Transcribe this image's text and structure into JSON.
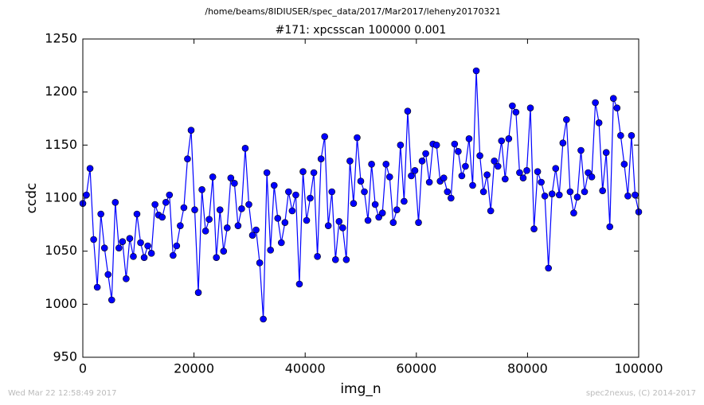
{
  "chart_data": {
    "type": "line",
    "title": "/home/beams/8IDIUSER/spec_data/2017/Mar2017/leheny20170321",
    "subtitle": "#171: xpcsscan 100000 0.001",
    "x_label": "img_n",
    "y_label": "ccdc",
    "footer_left": "Wed Mar 22 12:58:49 2017",
    "footer_right": "spec2nexus, (C) 2014-2017",
    "color": "#0000ff",
    "marker_edge": "#000000",
    "xlim": [
      0,
      100000
    ],
    "ylim": [
      950,
      1250
    ],
    "xticks": [
      0,
      20000,
      40000,
      60000,
      80000,
      100000
    ],
    "yticks": [
      950,
      1000,
      1050,
      1100,
      1150,
      1200,
      1250
    ],
    "x": [
      0,
      649,
      1299,
      1948,
      2597,
      3247,
      3896,
      4545,
      5195,
      5844,
      6494,
      7143,
      7792,
      8442,
      9091,
      9740,
      10390,
      11039,
      11688,
      12338,
      12987,
      13636,
      14286,
      14935,
      15584,
      16234,
      16883,
      17532,
      18182,
      18831,
      19481,
      20130,
      20779,
      21429,
      22078,
      22727,
      23377,
      24026,
      24675,
      25325,
      25974,
      26623,
      27273,
      27922,
      28571,
      29221,
      29870,
      30519,
      31169,
      31818,
      32468,
      33117,
      33766,
      34416,
      35065,
      35714,
      36364,
      37013,
      37662,
      38312,
      38961,
      39610,
      40260,
      40909,
      41558,
      42208,
      42857,
      43506,
      44156,
      44805,
      45455,
      46104,
      46753,
      47403,
      48052,
      48701,
      49351,
      50000,
      50649,
      51299,
      51948,
      52597,
      53247,
      53896,
      54545,
      55195,
      55844,
      56493,
      57143,
      57792,
      58442,
      59091,
      59740,
      60390,
      61039,
      61688,
      62338,
      62987,
      63636,
      64286,
      64935,
      65584,
      66234,
      66883,
      67532,
      68182,
      68831,
      69480,
      70130,
      70779,
      71429,
      72078,
      72727,
      73377,
      74026,
      74675,
      75325,
      75974,
      76623,
      77273,
      77922,
      78571,
      79221,
      79870,
      80519,
      81169,
      81818,
      82467,
      83117,
      83766,
      84416,
      85065,
      85714,
      86364,
      87013,
      87662,
      88312,
      88961,
      89610,
      90260,
      90909,
      91558,
      92208,
      92857,
      93506,
      94156,
      94805,
      95454,
      96104,
      96753,
      97403,
      98052,
      98701,
      99351,
      100000
    ],
    "values": [
      1095,
      1103,
      1128,
      1061,
      1016,
      1085,
      1053,
      1028,
      1004,
      1096,
      1053,
      1059,
      1024,
      1062,
      1045,
      1085,
      1058,
      1044,
      1055,
      1048,
      1094,
      1084,
      1082,
      1096,
      1103,
      1046,
      1055,
      1074,
      1091,
      1137,
      1164,
      1089,
      1011,
      1108,
      1069,
      1080,
      1120,
      1044,
      1089,
      1050,
      1072,
      1119,
      1114,
      1074,
      1090,
      1147,
      1094,
      1065,
      1070,
      1039,
      986,
      1124,
      1051,
      1112,
      1081,
      1058,
      1077,
      1106,
      1088,
      1103,
      1019,
      1125,
      1079,
      1100,
      1124,
      1045,
      1137,
      1158,
      1074,
      1106,
      1042,
      1078,
      1072,
      1042,
      1135,
      1095,
      1157,
      1116,
      1106,
      1079,
      1132,
      1094,
      1082,
      1086,
      1132,
      1120,
      1077,
      1089,
      1150,
      1097,
      1182,
      1121,
      1126,
      1077,
      1135,
      1142,
      1115,
      1151,
      1150,
      1116,
      1119,
      1106,
      1100,
      1151,
      1144,
      1121,
      1130,
      1156,
      1112,
      1220,
      1140,
      1106,
      1122,
      1088,
      1135,
      1130,
      1154,
      1118,
      1156,
      1187,
      1181,
      1124,
      1119,
      1126,
      1185,
      1071,
      1125,
      1115,
      1102,
      1034,
      1104,
      1128,
      1103,
      1152,
      1174,
      1106,
      1086,
      1101,
      1145,
      1106,
      1124,
      1120,
      1190,
      1171,
      1107,
      1143,
      1073,
      1194,
      1185,
      1159,
      1132,
      1102,
      1159,
      1103,
      1087
    ]
  }
}
